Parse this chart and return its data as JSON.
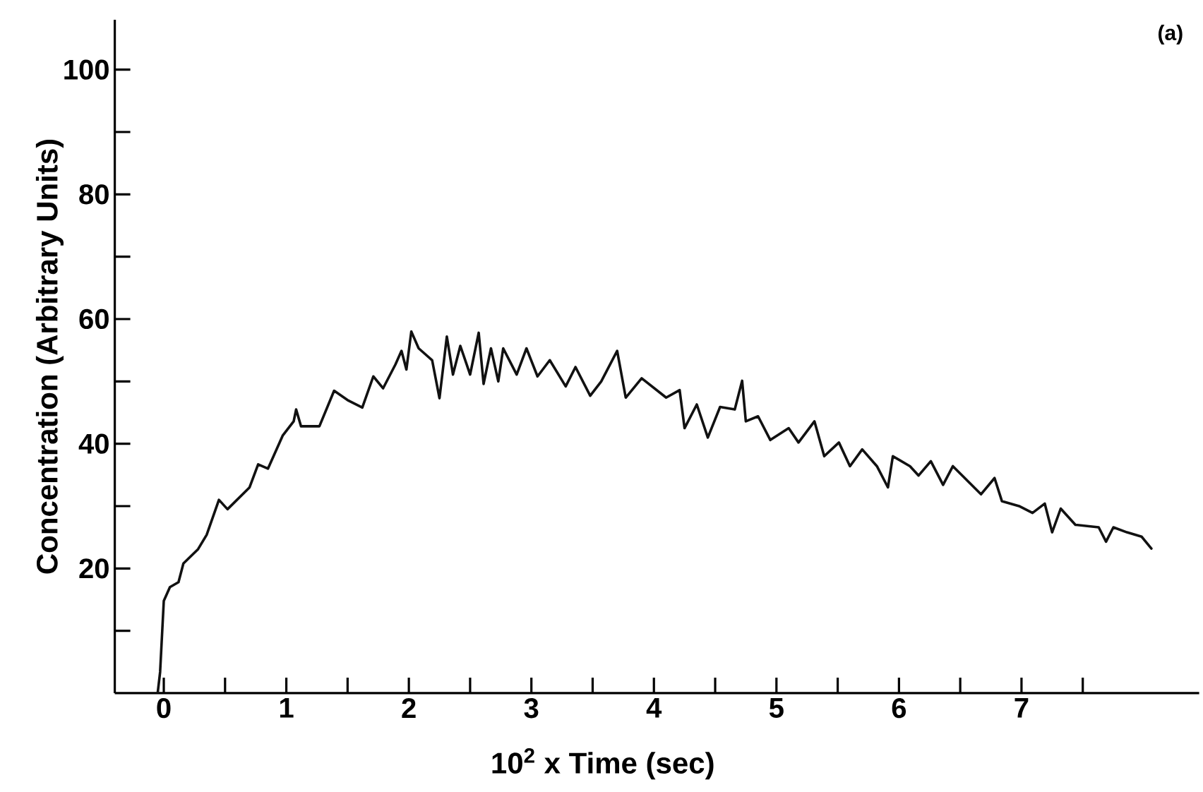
{
  "chart_data": {
    "type": "line",
    "xlabel": "10$^{2}$ x Time (sec)",
    "ylabel": "Concentration (Arbitrary Units)",
    "annotations": [
      "(a)"
    ],
    "x": [
      -0.05,
      -0.03,
      0.0,
      0.05,
      0.12,
      0.16,
      0.28,
      0.35,
      0.45,
      0.52,
      0.7,
      0.77,
      0.85,
      0.97,
      1.06,
      1.08,
      1.12,
      1.27,
      1.39,
      1.5,
      1.62,
      1.71,
      1.79,
      1.89,
      1.94,
      1.98,
      2.02,
      2.08,
      2.19,
      2.25,
      2.31,
      2.36,
      2.42,
      2.5,
      2.57,
      2.61,
      2.67,
      2.73,
      2.77,
      2.88,
      2.96,
      3.05,
      3.15,
      3.28,
      3.36,
      3.48,
      3.57,
      3.7,
      3.77,
      3.9,
      4.1,
      4.21,
      4.25,
      4.35,
      4.44,
      4.54,
      4.66,
      4.72,
      4.75,
      4.85,
      4.95,
      5.1,
      5.18,
      5.31,
      5.39,
      5.51,
      5.6,
      5.7,
      5.82,
      5.91,
      5.95,
      6.09,
      6.16,
      6.26,
      6.36,
      6.44,
      6.67,
      6.78,
      6.84,
      6.98,
      7.09,
      7.19,
      7.25,
      7.32,
      7.44,
      7.63,
      7.69,
      7.75,
      7.86,
      7.98,
      8.06
    ],
    "series": [
      {
        "color": "#111111",
        "line_style": "solid",
        "values": [
          0,
          3.4,
          14.8,
          17,
          17.8,
          20.8,
          23.1,
          25.4,
          31,
          29.5,
          33,
          36.7,
          36,
          41.3,
          43.6,
          45.5,
          42.8,
          42.8,
          48.5,
          47,
          45.8,
          50.8,
          48.9,
          52.7,
          54.9,
          51.9,
          58,
          55.3,
          53.4,
          47.3,
          57.2,
          51.1,
          55.7,
          51.1,
          57.8,
          49.6,
          55.3,
          50,
          55.3,
          51.1,
          55.3,
          50.8,
          53.4,
          49.2,
          52.3,
          47.7,
          50,
          54.9,
          47.4,
          50.5,
          47.4,
          48.6,
          42.5,
          46.3,
          41,
          45.9,
          45.5,
          50.1,
          43.6,
          44.4,
          40.6,
          42.5,
          40.2,
          43.6,
          38,
          40.2,
          36.4,
          39.1,
          36.4,
          33,
          38,
          36.4,
          34.9,
          37.2,
          33.4,
          36.4,
          31.9,
          34.5,
          30.8,
          30,
          28.9,
          30.4,
          25.8,
          29.6,
          27,
          26.6,
          24.3,
          26.6,
          25.8,
          25.1,
          23.2
        ]
      }
    ],
    "xlim": [
      -0.4,
      8.45
    ],
    "ylim": [
      0,
      108
    ],
    "xticks": [
      0,
      {
        "value": 0.5,
        "label": null
      },
      1,
      {
        "value": 1.5,
        "label": null
      },
      2,
      {
        "value": 2.5,
        "label": null
      },
      3,
      {
        "value": 3.5,
        "label": null
      },
      4,
      {
        "value": 4.5,
        "label": null
      },
      5,
      {
        "value": 5.5,
        "label": null
      },
      6,
      {
        "value": 6.5,
        "label": null
      },
      7,
      {
        "value": 7.5,
        "label": null
      }
    ],
    "yticks": [
      {
        "value": 10,
        "label": null
      },
      20,
      {
        "value": 30,
        "label": null
      },
      40,
      {
        "value": 50,
        "label": null
      },
      60,
      {
        "value": 70,
        "label": null
      },
      80,
      {
        "value": 90,
        "label": null
      },
      100
    ]
  }
}
